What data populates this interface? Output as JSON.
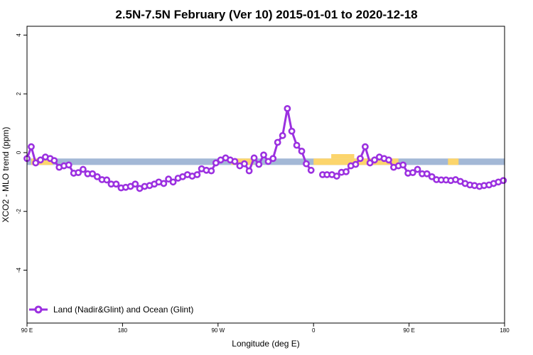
{
  "chart_data": {
    "type": "line",
    "title": "2.5N-7.5N February (Ver 10)   2015-01-01 to 2020-12-18",
    "xlabel": "Longitude (deg E)",
    "ylabel": "XCO2 - MLO trend (ppm)",
    "xlim": [
      -90,
      180
    ],
    "ylim": [
      -5.8,
      4.3
    ],
    "x_ticks": [
      {
        "value": -90,
        "label": "90 E"
      },
      {
        "value": -36,
        "label": "180"
      },
      {
        "value": 18,
        "label": "90 W"
      },
      {
        "value": 72,
        "label": "0"
      },
      {
        "value": 126,
        "label": "90 E"
      },
      {
        "value": 180,
        "label": "180"
      }
    ],
    "y_ticks": [
      {
        "value": -4,
        "label": "-4"
      },
      {
        "value": -2,
        "label": "-2"
      },
      {
        "value": 0,
        "label": "0"
      },
      {
        "value": 2,
        "label": "2"
      },
      {
        "value": 4,
        "label": "4"
      }
    ],
    "legend": {
      "position": "bottom-left",
      "label": "Land (Nadir&Glint) and Ocean (Glint)"
    },
    "colors": {
      "series": "#9b30e0",
      "ocean": "#a3b8d6",
      "land": "#fcd56c"
    },
    "surface_bar": {
      "y_top": -0.2,
      "y_bottom": -0.42,
      "land_segments": [
        [
          -87.6,
          -75.4
        ],
        [
          25.5,
          38.0
        ],
        [
          72.0,
          120.0
        ],
        [
          148.0,
          154.0
        ]
      ],
      "land_bumps": [
        [
          82,
          95,
          -0.05
        ]
      ]
    },
    "series": [
      {
        "name": "Land (Nadir&Glint) and Ocean (Glint)",
        "x": [
          -90.0,
          -87.6,
          -85.1,
          -82.4,
          -79.6,
          -76.9,
          -74.6,
          -71.8,
          -69.1,
          -66.4,
          -63.6,
          -61.0,
          -58.3,
          -55.7,
          -53.0,
          -50.3,
          -47.6,
          -44.9,
          -42.4,
          -39.6,
          -36.8,
          -34.2,
          -31.5,
          -28.8,
          -26.3,
          -23.5,
          -20.7,
          -18.0,
          -15.5,
          -12.7,
          -10.0,
          -7.4,
          -4.6,
          -2.0,
          0.7,
          3.4,
          6.2,
          8.7,
          11.4,
          14.2,
          16.8,
          19.5,
          22.3,
          24.9,
          27.5,
          30.3,
          32.9,
          35.6,
          38.4,
          41.1,
          43.8,
          46.4,
          49.1,
          51.7,
          54.5,
          57.2,
          59.7,
          62.5,
          65.3,
          67.9,
          70.6,
          77.1,
          79.6,
          82.4,
          85.1,
          87.8,
          90.4,
          93.1,
          95.8,
          98.4,
          101.2,
          103.9,
          106.5,
          109.2,
          111.9,
          114.5,
          117.3,
          120.0,
          122.6,
          125.4,
          128.1,
          130.8,
          133.4,
          136.1,
          138.9,
          141.5,
          144.2,
          146.9,
          149.6,
          152.3,
          155.0,
          157.7,
          160.4,
          163.0,
          165.8,
          168.4,
          171.2,
          173.8,
          176.5,
          179.3
        ],
        "y": [
          -0.2,
          0.2,
          -0.35,
          -0.25,
          -0.15,
          -0.2,
          -0.27,
          -0.5,
          -0.45,
          -0.42,
          -0.7,
          -0.68,
          -0.57,
          -0.72,
          -0.72,
          -0.82,
          -0.92,
          -0.93,
          -1.07,
          -1.07,
          -1.2,
          -1.18,
          -1.15,
          -1.07,
          -1.22,
          -1.15,
          -1.12,
          -1.07,
          -1.0,
          -1.05,
          -0.9,
          -1.0,
          -0.87,
          -0.82,
          -0.75,
          -0.8,
          -0.75,
          -0.55,
          -0.6,
          -0.62,
          -0.35,
          -0.25,
          -0.18,
          -0.25,
          -0.3,
          -0.45,
          -0.38,
          -0.62,
          -0.18,
          -0.4,
          -0.08,
          -0.3,
          -0.2,
          0.35,
          0.58,
          1.5,
          0.73,
          0.25,
          0.05,
          -0.38,
          -0.6,
          -0.75,
          -0.75,
          -0.75,
          -0.8,
          -0.67,
          -0.65,
          -0.45,
          -0.4,
          -0.2,
          0.2,
          -0.35,
          -0.25,
          -0.15,
          -0.2,
          -0.25,
          -0.5,
          -0.45,
          -0.42,
          -0.7,
          -0.68,
          -0.57,
          -0.72,
          -0.72,
          -0.82,
          -0.92,
          -0.93,
          -0.93,
          -0.95,
          -0.92,
          -0.98,
          -1.05,
          -1.1,
          -1.12,
          -1.15,
          -1.12,
          -1.1,
          -1.05,
          -1.0,
          -0.95
        ],
        "y_note_skip": true
      }
    ]
  }
}
